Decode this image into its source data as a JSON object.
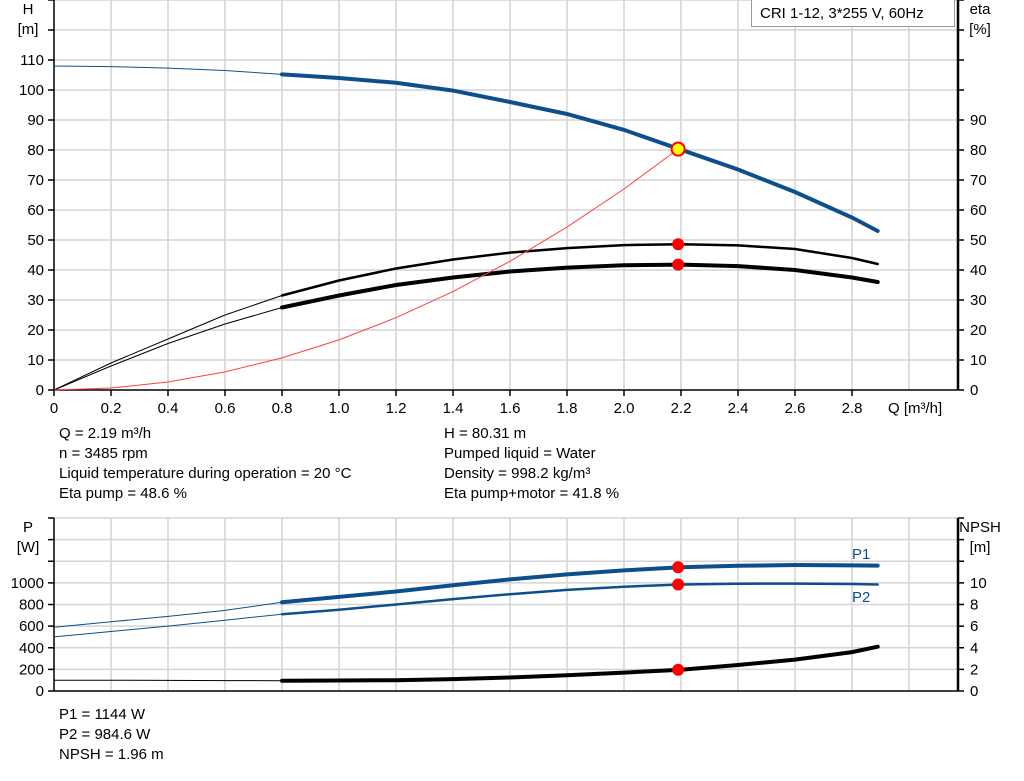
{
  "chart_data": [
    {
      "type": "line",
      "legend": "CRI 1-12, 3*255 V, 60Hz",
      "xlabel": "Q [m³/h]",
      "ylabel_left": [
        "H",
        "[m]"
      ],
      "ylabel_right": [
        "eta",
        "[%]"
      ],
      "xlim": [
        0,
        3.17
      ],
      "ylim_left": [
        0,
        130
      ],
      "ylim_right": [
        0,
        130
      ],
      "grid": true,
      "x_ticks": [
        "0",
        "0.2",
        "0.4",
        "0.6",
        "0.8",
        "1.0",
        "1.2",
        "1.4",
        "1.6",
        "1.8",
        "2.0",
        "2.2",
        "2.4",
        "2.6",
        "2.8"
      ],
      "y_ticks_left": [
        "0",
        "10",
        "20",
        "30",
        "40",
        "50",
        "60",
        "70",
        "80",
        "90",
        "100",
        "110"
      ],
      "y_ticks_right": [
        "0",
        "10",
        "20",
        "30",
        "40",
        "50",
        "60",
        "70",
        "80",
        "90"
      ],
      "series": [
        {
          "id": "H",
          "color": "#0d4f8b",
          "axis": "left",
          "x": [
            0,
            0.2,
            0.4,
            0.6,
            0.8,
            1.0,
            1.2,
            1.4,
            1.6,
            1.8,
            2.0,
            2.2,
            2.4,
            2.6,
            2.8,
            2.89
          ],
          "y": [
            108,
            107.8,
            107.3,
            106.5,
            105.2,
            104,
            102.4,
            99.8,
            96,
            92,
            86.7,
            80.1,
            73.5,
            66,
            57.5,
            53
          ]
        },
        {
          "id": "eta-pump",
          "color": "#000000",
          "axis": "right",
          "x": [
            0,
            0.2,
            0.4,
            0.6,
            0.8,
            1.0,
            1.2,
            1.4,
            1.6,
            1.8,
            2.0,
            2.2,
            2.4,
            2.6,
            2.8,
            2.89
          ],
          "y": [
            0,
            9,
            17,
            25,
            31.5,
            36.5,
            40.5,
            43.5,
            45.8,
            47.3,
            48.3,
            48.6,
            48.2,
            47,
            44,
            42
          ]
        },
        {
          "id": "eta-pump-motor",
          "color": "#000000",
          "axis": "right",
          "x": [
            0,
            0.2,
            0.4,
            0.6,
            0.8,
            1.0,
            1.2,
            1.4,
            1.6,
            1.8,
            2.0,
            2.2,
            2.4,
            2.6,
            2.8,
            2.89
          ],
          "y": [
            0,
            8,
            15.5,
            22,
            27.5,
            31.5,
            35,
            37.5,
            39.5,
            40.8,
            41.6,
            41.8,
            41.3,
            40,
            37.5,
            36
          ]
        },
        {
          "id": "system-curve",
          "color": "#ff4040",
          "axis": "left",
          "x": [
            0,
            0.2,
            0.4,
            0.6,
            0.8,
            1.0,
            1.2,
            1.4,
            1.6,
            1.8,
            2.0,
            2.19
          ],
          "y": [
            0,
            0.67,
            2.68,
            6.03,
            10.7,
            16.7,
            24.1,
            32.8,
            42.9,
            54.3,
            67,
            80.31
          ]
        }
      ],
      "operating_point": {
        "x": 2.19,
        "H": 80.31,
        "eta_pump": 48.6,
        "eta_pump_motor": 41.8
      },
      "thick_from_x": 0.8
    },
    {
      "type": "line",
      "xlim": [
        0,
        3.17
      ],
      "ylabel_left": [
        "P",
        "[W]"
      ],
      "ylabel_right": [
        "NPSH",
        "[m]"
      ],
      "ylim_left": [
        0,
        1600
      ],
      "ylim_right": [
        0,
        16
      ],
      "grid": true,
      "y_ticks_left": [
        "0",
        "200",
        "400",
        "600",
        "800",
        "1000"
      ],
      "y_ticks_right": [
        "0",
        "2",
        "4",
        "6",
        "8",
        "10"
      ],
      "series": [
        {
          "id": "P1",
          "name": "P1",
          "color": "#0d4f8b",
          "axis": "left",
          "x": [
            0,
            0.2,
            0.4,
            0.6,
            0.8,
            1.0,
            1.2,
            1.4,
            1.6,
            1.8,
            2.0,
            2.2,
            2.4,
            2.6,
            2.8,
            2.89
          ],
          "y": [
            590,
            640,
            690,
            745,
            820,
            870,
            920,
            978,
            1032,
            1078,
            1115,
            1144,
            1158,
            1165,
            1162,
            1160
          ]
        },
        {
          "id": "P2",
          "name": "P2",
          "color": "#0d4f8b",
          "axis": "left",
          "x": [
            0,
            0.2,
            0.4,
            0.6,
            0.8,
            1.0,
            1.2,
            1.4,
            1.6,
            1.8,
            2.0,
            2.2,
            2.4,
            2.6,
            2.8,
            2.89
          ],
          "y": [
            500,
            550,
            600,
            655,
            710,
            752,
            800,
            850,
            895,
            935,
            965,
            985,
            992,
            993,
            990,
            985
          ]
        },
        {
          "id": "NPSH",
          "color": "#000000",
          "axis": "right",
          "x": [
            0,
            0.2,
            0.4,
            0.6,
            0.8,
            1.0,
            1.2,
            1.4,
            1.6,
            1.8,
            2.0,
            2.2,
            2.4,
            2.6,
            2.8,
            2.89
          ],
          "y": [
            1.0,
            1.0,
            0.98,
            0.96,
            0.95,
            0.97,
            1.0,
            1.1,
            1.25,
            1.45,
            1.7,
            1.96,
            2.4,
            2.9,
            3.6,
            4.1
          ]
        }
      ],
      "operating_point": {
        "x": 2.19,
        "P1": 1144,
        "P2": 984.6,
        "NPSH": 1.96
      },
      "thick_from_x": 0.8
    }
  ],
  "info_top": {
    "q": "Q = 2.19 m³/h",
    "n": "n = 3485 rpm",
    "temp": "Liquid temperature during operation = 20 °C",
    "eta_pump": "Eta pump = 48.6 %",
    "h": "H = 80.31 m",
    "liquid": "Pumped liquid = Water",
    "density": "Density = 998.2 kg/m³",
    "eta_pm": "Eta pump+motor = 41.8 %"
  },
  "info_bottom": {
    "p1": "P1 = 1144 W",
    "p2": "P2 = 984.6 W",
    "npsh": "NPSH = 1.96 m"
  }
}
